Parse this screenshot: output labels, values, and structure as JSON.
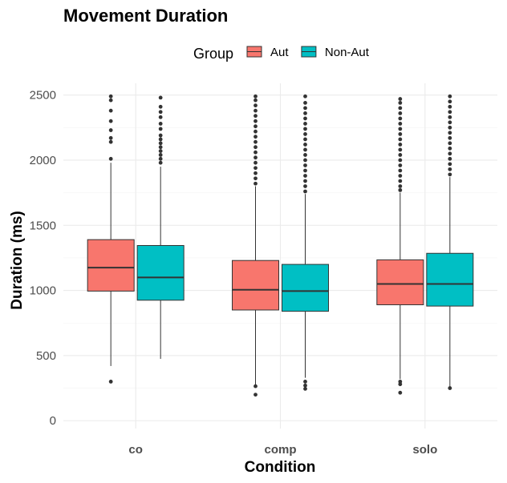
{
  "chart_data": {
    "type": "boxplot",
    "title": "Movement Duration",
    "xlabel": "Condition",
    "ylabel": "Duration (ms)",
    "ylim": [
      -60,
      2590
    ],
    "yticks": [
      0,
      500,
      1000,
      1500,
      2000,
      2500
    ],
    "categories": [
      "co",
      "comp",
      "solo"
    ],
    "legend": {
      "title": "Group",
      "position": "top"
    },
    "grid": true,
    "series": [
      {
        "name": "Aut",
        "color": "#F8766D",
        "boxes": [
          {
            "category": "co",
            "whisker_low": 420,
            "q1": 995,
            "median": 1175,
            "q3": 1390,
            "whisker_high": 1980,
            "outliers": [
              300,
              2010,
              2140,
              2170,
              2230,
              2300,
              2380,
              2460,
              2490
            ]
          },
          {
            "category": "comp",
            "whisker_low": 270,
            "q1": 850,
            "median": 1005,
            "q3": 1230,
            "whisker_high": 1800,
            "outliers": [
              200,
              265,
              1820,
              1860,
              1900,
              1940,
              1980,
              2020,
              2060,
              2100,
              2140,
              2180,
              2220,
              2260,
              2300,
              2340,
              2380,
              2420,
              2460,
              2490
            ]
          },
          {
            "category": "solo",
            "whisker_low": 320,
            "q1": 890,
            "median": 1050,
            "q3": 1235,
            "whisker_high": 1750,
            "outliers": [
              215,
              280,
              300,
              1770,
              1800,
              1840,
              1880,
              1920,
              1960,
              2000,
              2040,
              2080,
              2120,
              2160,
              2200,
              2240,
              2280,
              2320,
              2360,
              2400,
              2440,
              2470
            ]
          }
        ]
      },
      {
        "name": "Non-Aut",
        "color": "#00BFC4",
        "boxes": [
          {
            "category": "co",
            "whisker_low": 475,
            "q1": 925,
            "median": 1100,
            "q3": 1345,
            "whisker_high": 1950,
            "outliers": [
              1980,
              2010,
              2040,
              2070,
              2100,
              2130,
              2160,
              2190,
              2240,
              2280,
              2330,
              2370,
              2410,
              2480
            ]
          },
          {
            "category": "comp",
            "whisker_low": 330,
            "q1": 840,
            "median": 995,
            "q3": 1200,
            "whisker_high": 1740,
            "outliers": [
              245,
              270,
              300,
              1760,
              1800,
              1840,
              1880,
              1920,
              1960,
              2000,
              2040,
              2080,
              2120,
              2160,
              2200,
              2240,
              2280,
              2320,
              2360,
              2400,
              2440,
              2490
            ]
          },
          {
            "category": "solo",
            "whisker_low": 260,
            "q1": 880,
            "median": 1050,
            "q3": 1285,
            "whisker_high": 1870,
            "outliers": [
              250,
              1890,
              1930,
              1970,
              2010,
              2050,
              2090,
              2130,
              2170,
              2210,
              2250,
              2290,
              2330,
              2370,
              2410,
              2450,
              2490
            ]
          }
        ]
      }
    ]
  }
}
